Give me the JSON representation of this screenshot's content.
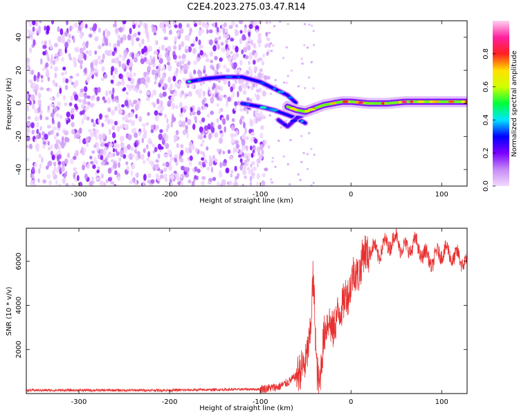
{
  "figure": {
    "title": "C2E4.2023.275.03.47.R14"
  },
  "chart_data": [
    {
      "type": "heatmap",
      "title": "C2E4.2023.275.03.47.R14",
      "xlabel": "Height of straight line (km)",
      "ylabel": "Frequency (Hz)",
      "colorbar_label": "Normalized spectral amplitude",
      "xlim": [
        -358,
        128
      ],
      "ylim": [
        -50,
        50
      ],
      "x_ticks": [
        -300,
        -200,
        -100,
        0,
        100
      ],
      "y_ticks": [
        -40,
        -20,
        0,
        20,
        40
      ],
      "colorbar_range": [
        0,
        1
      ],
      "colorbar_ticks": [
        0.0,
        0.2,
        0.4,
        0.6,
        0.8
      ],
      "colormap": [
        "#f2d9ff",
        "#c58bf5",
        "#7a00ff",
        "#0000ff",
        "#00e5ff",
        "#00ff3a",
        "#d0ff00",
        "#ffe000",
        "#ff2020",
        "#ff20a0",
        "#ffd0f0"
      ],
      "noise_region_x": [
        -358,
        -90
      ],
      "ridges": [
        {
          "x": [
            -180,
            -160,
            -140,
            -120,
            -100,
            -85,
            -70,
            -60
          ],
          "y": [
            13,
            15,
            16,
            16,
            13,
            9,
            5,
            0
          ],
          "amplitude": 0.3
        },
        {
          "x": [
            -120,
            -100,
            -85,
            -70,
            -60,
            -50
          ],
          "y": [
            0,
            -2,
            -4,
            -7,
            -9,
            -12
          ],
          "amplitude": 0.3
        },
        {
          "x": [
            -80,
            -70,
            -60,
            -50,
            -40
          ],
          "y": [
            -10,
            -14,
            -9,
            -6,
            -2
          ],
          "amplitude": 0.25
        },
        {
          "x": [
            -70,
            -60,
            -50,
            -40,
            -30,
            -20,
            -10,
            0,
            20,
            40,
            60,
            80,
            100,
            120,
            128
          ],
          "y": [
            -2,
            -4,
            -5,
            -3,
            -1,
            0,
            1,
            1,
            0,
            0,
            1,
            1,
            1,
            1,
            1
          ],
          "amplitude": 0.55
        }
      ]
    },
    {
      "type": "line",
      "xlabel": "Height of straight line (km)",
      "ylabel": "SNR (10 * v/v)",
      "xlim": [
        -358,
        128
      ],
      "ylim": [
        0,
        7500
      ],
      "x_ticks": [
        -300,
        -200,
        -100,
        0,
        100
      ],
      "y_ticks": [
        2000,
        4000,
        6000
      ],
      "color": "#e83030",
      "series": [
        {
          "x": [
            -358,
            -300,
            -200,
            -100,
            -80,
            -70,
            -60,
            -55,
            -50,
            -45,
            -42,
            -40,
            -38,
            -35,
            -30,
            -25,
            -20,
            -15,
            -10,
            -5,
            0,
            10,
            20,
            30,
            40,
            50,
            60,
            70,
            80,
            90,
            100,
            110,
            120,
            128
          ],
          "values": [
            150,
            150,
            150,
            200,
            300,
            500,
            800,
            1100,
            1400,
            2600,
            5200,
            3800,
            1200,
            300,
            2600,
            3400,
            2800,
            3600,
            3900,
            4600,
            5000,
            5800,
            6600,
            6400,
            6800,
            7000,
            6500,
            6800,
            6300,
            6000,
            6500,
            6300,
            6100,
            6000
          ]
        }
      ]
    }
  ]
}
